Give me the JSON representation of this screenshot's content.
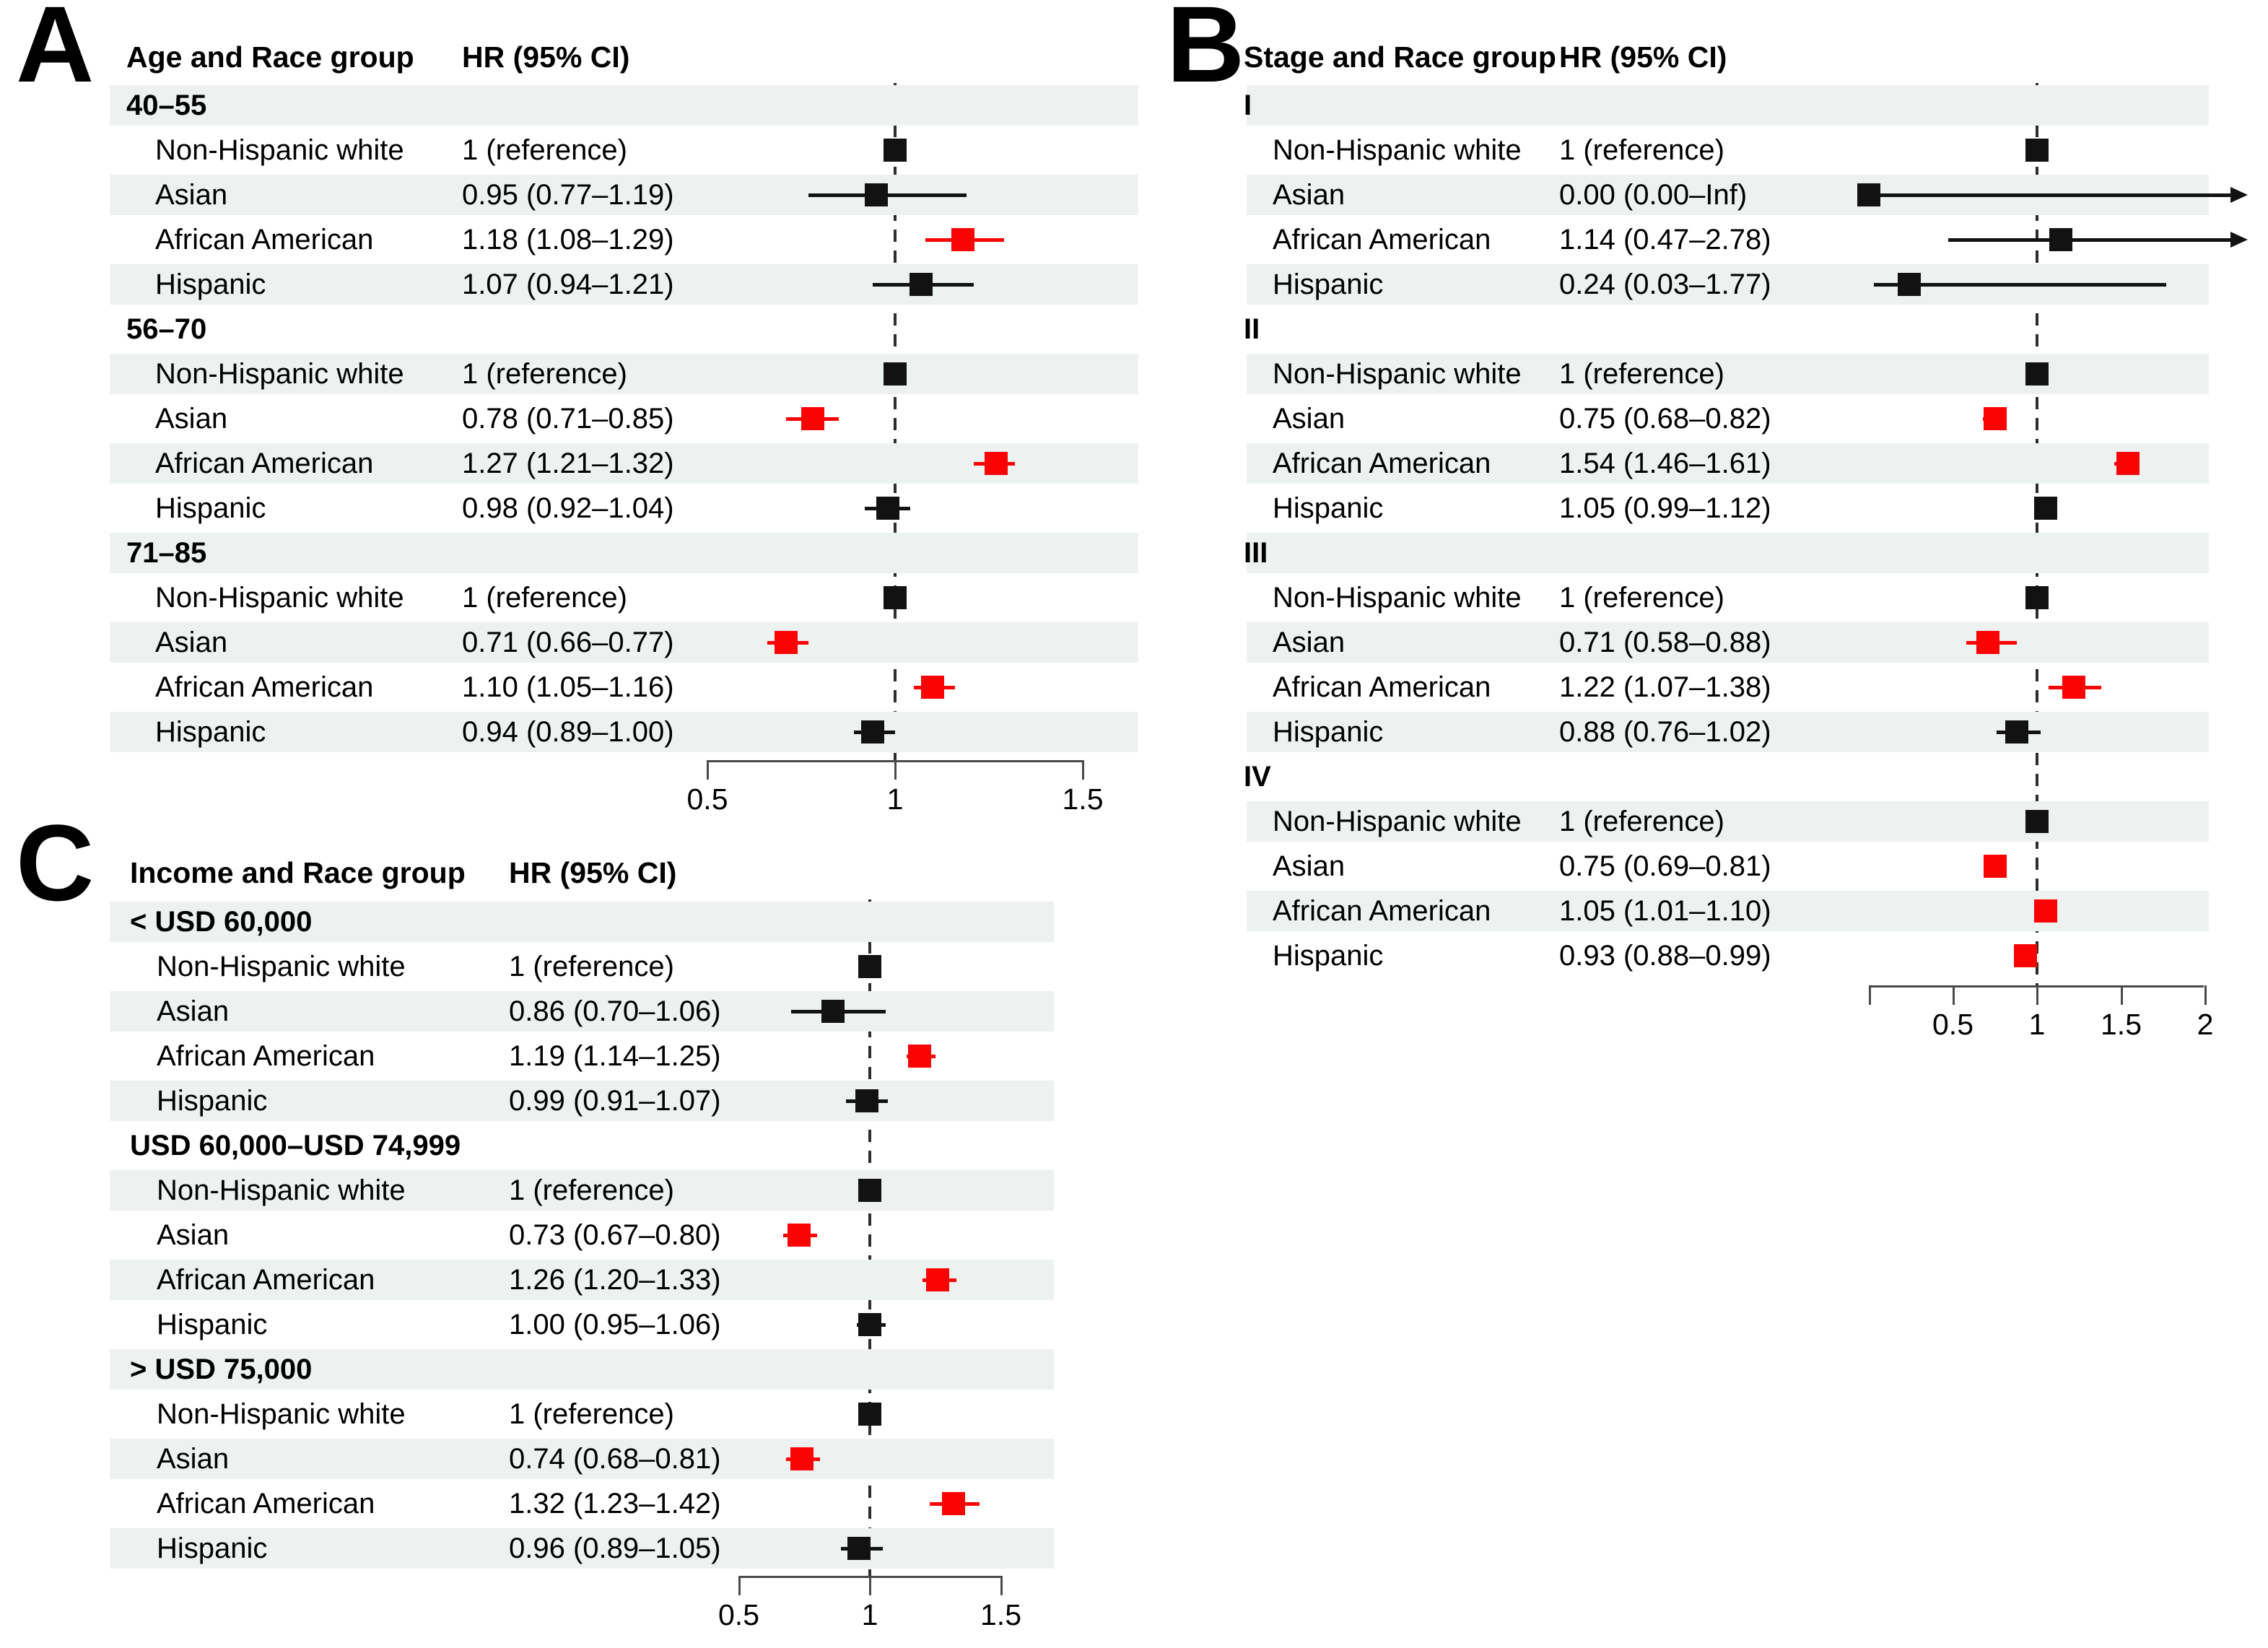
{
  "colors": {
    "significant_red": "#fa0303",
    "marker_black": "#121212",
    "row_stripe": "#edf1f0",
    "axis_gray": "#4a4a4a",
    "text": "#000000"
  },
  "chart_data": [
    {
      "type": "scatter",
      "subtype": "forest_plot",
      "panel_label": "A",
      "group_header": "Age and Race group",
      "hr_header": "HR (95% CI)",
      "axis": {
        "xmin": 0.5,
        "xmax": 1.5,
        "ticks": [
          0.5,
          1,
          1.5
        ],
        "tick_labels": [
          "0.5",
          "1",
          "1.5"
        ],
        "reference_line": 1,
        "left_end_tick": false,
        "grid": false
      },
      "groups": [
        {
          "name": "40–55",
          "rows": [
            {
              "label": "Non-Hispanic white",
              "hr_text": "1 (reference)",
              "hr": 1,
              "reference": true,
              "significant": false
            },
            {
              "label": "Asian",
              "hr_text": "0.95 (0.77–1.19)",
              "hr": 0.95,
              "lo": 0.77,
              "hi": 1.19,
              "significant": false
            },
            {
              "label": "African American",
              "hr_text": "1.18 (1.08–1.29)",
              "hr": 1.18,
              "lo": 1.08,
              "hi": 1.29,
              "significant": true
            },
            {
              "label": "Hispanic",
              "hr_text": "1.07 (0.94–1.21)",
              "hr": 1.07,
              "lo": 0.94,
              "hi": 1.21,
              "significant": false
            }
          ]
        },
        {
          "name": "56–70",
          "rows": [
            {
              "label": "Non-Hispanic white",
              "hr_text": "1 (reference)",
              "hr": 1,
              "reference": true,
              "significant": false
            },
            {
              "label": "Asian",
              "hr_text": "0.78 (0.71–0.85)",
              "hr": 0.78,
              "lo": 0.71,
              "hi": 0.85,
              "significant": true
            },
            {
              "label": "African American",
              "hr_text": "1.27 (1.21–1.32)",
              "hr": 1.27,
              "lo": 1.21,
              "hi": 1.32,
              "significant": true
            },
            {
              "label": "Hispanic",
              "hr_text": "0.98 (0.92–1.04)",
              "hr": 0.98,
              "lo": 0.92,
              "hi": 1.04,
              "significant": false
            }
          ]
        },
        {
          "name": "71–85",
          "rows": [
            {
              "label": "Non-Hispanic white",
              "hr_text": "1 (reference)",
              "hr": 1,
              "reference": true,
              "significant": false
            },
            {
              "label": "Asian",
              "hr_text": "0.71 (0.66–0.77)",
              "hr": 0.71,
              "lo": 0.66,
              "hi": 0.77,
              "significant": true
            },
            {
              "label": "African American",
              "hr_text": "1.10 (1.05–1.16)",
              "hr": 1.1,
              "lo": 1.05,
              "hi": 1.16,
              "significant": true
            },
            {
              "label": "Hispanic",
              "hr_text": "0.94 (0.89–1.00)",
              "hr": 0.94,
              "lo": 0.89,
              "hi": 1.0,
              "significant": false
            }
          ]
        }
      ]
    },
    {
      "type": "scatter",
      "subtype": "forest_plot",
      "panel_label": "B",
      "group_header": "Stage and Race group",
      "hr_header": "HR (95% CI)",
      "axis": {
        "xmin": 0,
        "xmax": 2,
        "ticks": [
          0.5,
          1,
          1.5,
          2
        ],
        "tick_labels": [
          "0.5",
          "1",
          "1.5",
          "2"
        ],
        "reference_line": 1,
        "left_end_tick": true,
        "grid": false
      },
      "groups": [
        {
          "name": "I",
          "rows": [
            {
              "label": "Non-Hispanic white",
              "hr_text": "1 (reference)",
              "hr": 1,
              "reference": true,
              "significant": false
            },
            {
              "label": "Asian",
              "hr_text": "0.00 (0.00–Inf)",
              "hr": 0.0,
              "lo": 0.0,
              "hi": null,
              "hi_label": "Inf",
              "arrow_right": true,
              "significant": false
            },
            {
              "label": "African American",
              "hr_text": "1.14 (0.47–2.78)",
              "hr": 1.14,
              "lo": 0.47,
              "hi": 2.78,
              "arrow_right": true,
              "significant": false
            },
            {
              "label": "Hispanic",
              "hr_text": "0.24 (0.03–1.77)",
              "hr": 0.24,
              "lo": 0.03,
              "hi": 1.77,
              "significant": false
            }
          ]
        },
        {
          "name": "II",
          "rows": [
            {
              "label": "Non-Hispanic white",
              "hr_text": "1 (reference)",
              "hr": 1,
              "reference": true,
              "significant": false
            },
            {
              "label": "Asian",
              "hr_text": "0.75 (0.68–0.82)",
              "hr": 0.75,
              "lo": 0.68,
              "hi": 0.82,
              "significant": true
            },
            {
              "label": "African American",
              "hr_text": "1.54 (1.46–1.61)",
              "hr": 1.54,
              "lo": 1.46,
              "hi": 1.61,
              "significant": true
            },
            {
              "label": "Hispanic",
              "hr_text": "1.05 (0.99–1.12)",
              "hr": 1.05,
              "lo": 0.99,
              "hi": 1.12,
              "significant": false
            }
          ]
        },
        {
          "name": "III",
          "rows": [
            {
              "label": "Non-Hispanic white",
              "hr_text": "1 (reference)",
              "hr": 1,
              "reference": true,
              "significant": false
            },
            {
              "label": "Asian",
              "hr_text": "0.71 (0.58–0.88)",
              "hr": 0.71,
              "lo": 0.58,
              "hi": 0.88,
              "significant": true
            },
            {
              "label": "African American",
              "hr_text": "1.22 (1.07–1.38)",
              "hr": 1.22,
              "lo": 1.07,
              "hi": 1.38,
              "significant": true
            },
            {
              "label": "Hispanic",
              "hr_text": "0.88 (0.76–1.02)",
              "hr": 0.88,
              "lo": 0.76,
              "hi": 1.02,
              "significant": false
            }
          ]
        },
        {
          "name": "IV",
          "rows": [
            {
              "label": "Non-Hispanic white",
              "hr_text": "1 (reference)",
              "hr": 1,
              "reference": true,
              "significant": false
            },
            {
              "label": "Asian",
              "hr_text": "0.75 (0.69–0.81)",
              "hr": 0.75,
              "lo": 0.69,
              "hi": 0.81,
              "significant": true
            },
            {
              "label": "African American",
              "hr_text": "1.05 (1.01–1.10)",
              "hr": 1.05,
              "lo": 1.01,
              "hi": 1.1,
              "significant": true
            },
            {
              "label": "Hispanic",
              "hr_text": "0.93 (0.88–0.99)",
              "hr": 0.93,
              "lo": 0.88,
              "hi": 0.99,
              "significant": true
            }
          ]
        }
      ]
    },
    {
      "type": "scatter",
      "subtype": "forest_plot",
      "panel_label": "C",
      "group_header": "Income and Race group",
      "hr_header": "HR (95% CI)",
      "axis": {
        "xmin": 0.5,
        "xmax": 1.5,
        "ticks": [
          0.5,
          1,
          1.5
        ],
        "tick_labels": [
          "0.5",
          "1",
          "1.5"
        ],
        "reference_line": 1,
        "left_end_tick": false,
        "grid": false
      },
      "groups": [
        {
          "name": "< USD 60,000",
          "rows": [
            {
              "label": "Non-Hispanic white",
              "hr_text": "1 (reference)",
              "hr": 1,
              "reference": true,
              "significant": false
            },
            {
              "label": "Asian",
              "hr_text": "0.86 (0.70–1.06)",
              "hr": 0.86,
              "lo": 0.7,
              "hi": 1.06,
              "significant": false
            },
            {
              "label": "African American",
              "hr_text": "1.19 (1.14–1.25)",
              "hr": 1.19,
              "lo": 1.14,
              "hi": 1.25,
              "significant": true
            },
            {
              "label": "Hispanic",
              "hr_text": "0.99 (0.91–1.07)",
              "hr": 0.99,
              "lo": 0.91,
              "hi": 1.07,
              "significant": false
            }
          ]
        },
        {
          "name": "USD 60,000–USD 74,999",
          "rows": [
            {
              "label": "Non-Hispanic white",
              "hr_text": "1 (reference)",
              "hr": 1,
              "reference": true,
              "significant": false
            },
            {
              "label": "Asian",
              "hr_text": "0.73 (0.67–0.80)",
              "hr": 0.73,
              "lo": 0.67,
              "hi": 0.8,
              "significant": true
            },
            {
              "label": "African American",
              "hr_text": "1.26 (1.20–1.33)",
              "hr": 1.26,
              "lo": 1.2,
              "hi": 1.33,
              "significant": true
            },
            {
              "label": "Hispanic",
              "hr_text": "1.00 (0.95–1.06)",
              "hr": 1.0,
              "lo": 0.95,
              "hi": 1.06,
              "significant": false
            }
          ]
        },
        {
          "name": "> USD 75,000",
          "rows": [
            {
              "label": "Non-Hispanic white",
              "hr_text": "1 (reference)",
              "hr": 1,
              "reference": true,
              "significant": false
            },
            {
              "label": "Asian",
              "hr_text": "0.74 (0.68–0.81)",
              "hr": 0.74,
              "lo": 0.68,
              "hi": 0.81,
              "significant": true
            },
            {
              "label": "African American",
              "hr_text": "1.32 (1.23–1.42)",
              "hr": 1.32,
              "lo": 1.23,
              "hi": 1.42,
              "significant": true
            },
            {
              "label": "Hispanic",
              "hr_text": "0.96 (0.89–1.05)",
              "hr": 0.96,
              "lo": 0.89,
              "hi": 1.05,
              "significant": false
            }
          ]
        }
      ]
    }
  ]
}
